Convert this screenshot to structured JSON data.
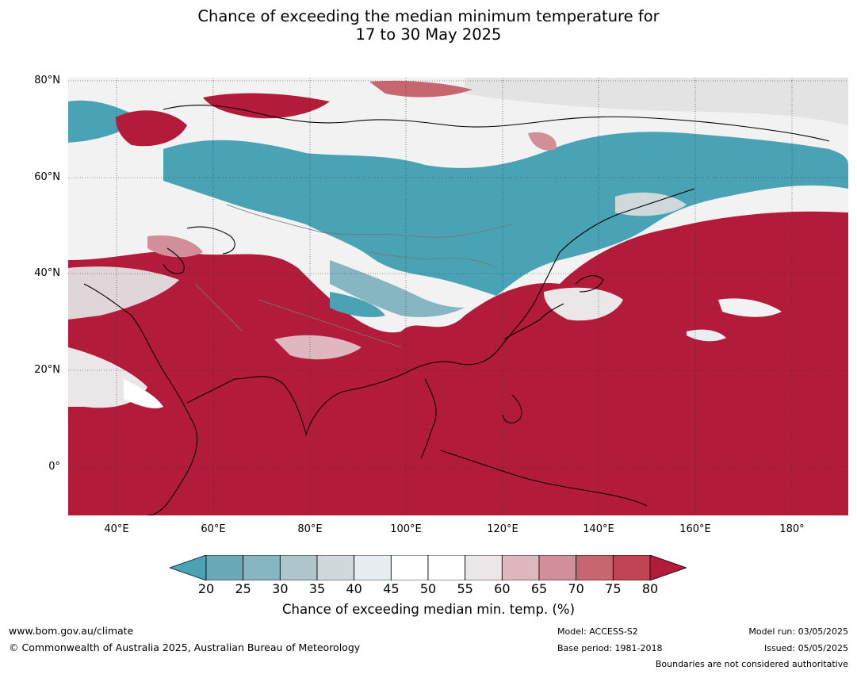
{
  "title_line1": "Chance of exceeding the median minimum temperature for",
  "title_line2": "17 to 30 May 2025",
  "lat_labels": [
    "80°N",
    "60°N",
    "40°N",
    "20°N",
    "0°"
  ],
  "lon_labels": [
    "40°E",
    "60°E",
    "80°E",
    "100°E",
    "120°E",
    "140°E",
    "160°E",
    "180°"
  ],
  "colorbar": {
    "ticks": [
      "20",
      "25",
      "30",
      "35",
      "40",
      "45",
      "50",
      "55",
      "60",
      "65",
      "70",
      "75",
      "80"
    ],
    "colors": [
      "#4aa3b5",
      "#6aa9b7",
      "#86b6c2",
      "#aec5cc",
      "#cfd8db",
      "#e8eef0",
      "#ffffff",
      "#ffffff",
      "#ebe6e8",
      "#dfb8bf",
      "#d38f99",
      "#c8666f",
      "#bf4553",
      "#b31b3a"
    ],
    "label": "Chance of exceeding median min. temp. (%)"
  },
  "footer": {
    "url": "www.bom.gov.au/climate",
    "copyright": "© Commonwealth of Australia 2025, Australian Bureau of Meteorology",
    "model": "Model: ACCESS-S2",
    "base_period": "Base period: 1981-2018",
    "model_run": "Model run: 03/05/2025",
    "issued": "Issued: 05/05/2025",
    "boundaries": "Boundaries are not considered authoritative"
  }
}
